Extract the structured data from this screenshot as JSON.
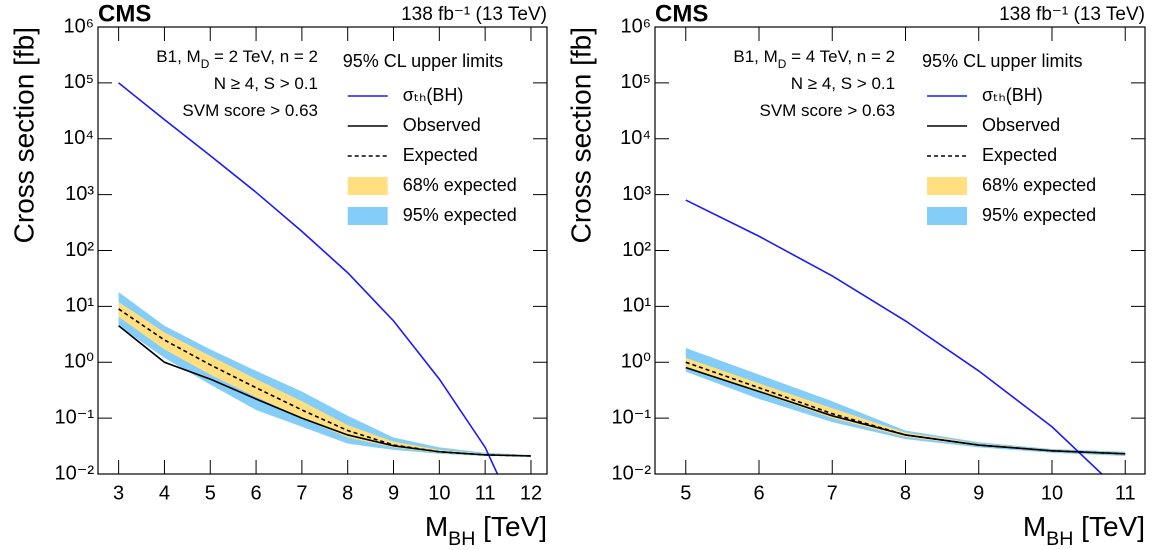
{
  "chart_data": [
    {
      "type": "line",
      "log_y": true,
      "experiment": "CMS",
      "lumi": "138 fb⁻¹ (13 TeV)",
      "y_label": "Cross section [fb]",
      "x_label": [
        {
          "text": "M"
        },
        {
          "text": "BH",
          "shift": "sub"
        },
        {
          "text": " [TeV]"
        }
      ],
      "annotations": [
        [
          {
            "text": "B1, M"
          },
          {
            "text": "D",
            "shift": "sub"
          },
          {
            "text": " = 2 TeV, n = 2"
          }
        ],
        [
          {
            "text": "N ≥ 4, S > 0.1"
          }
        ],
        [
          {
            "text": "SVM score > 0.63"
          }
        ]
      ],
      "legend_title": "95% CL upper limits",
      "xlim": [
        2.55,
        12.35
      ],
      "xticks": [
        3,
        4,
        5,
        6,
        7,
        8,
        9,
        10,
        11,
        12
      ],
      "ylim": [
        0.01,
        1000000
      ],
      "yticks": [
        {
          "value": 0.01,
          "label": "10⁻²"
        },
        {
          "value": 0.1,
          "label": "10⁻¹"
        },
        {
          "value": 1,
          "label": "10⁰"
        },
        {
          "value": 10,
          "label": "10¹"
        },
        {
          "value": 100,
          "label": "10²"
        },
        {
          "value": 1000,
          "label": "10³"
        },
        {
          "value": 10000,
          "label": "10⁴"
        },
        {
          "value": 100000,
          "label": "10⁵"
        },
        {
          "value": 1000000,
          "label": "10⁶"
        }
      ],
      "x": [
        3,
        4,
        5,
        6,
        7,
        8,
        9,
        10,
        11,
        12
      ],
      "series": [
        {
          "name": "σₜₕ(BH)",
          "color": "#1a1aff",
          "values": [
            100000,
            22000,
            5000,
            1100,
            220,
            40,
            5.5,
            0.5,
            0.03,
            0.0005
          ]
        },
        {
          "name": "Observed",
          "color": "#000000",
          "values": [
            4.5,
            1.0,
            0.5,
            0.22,
            0.1,
            0.05,
            0.032,
            0.025,
            0.022,
            0.021
          ]
        },
        {
          "name": "Expected",
          "color": "#000000",
          "dashed": true,
          "values": [
            9,
            2.5,
            0.9,
            0.35,
            0.14,
            0.06,
            0.033,
            0.025,
            0.022,
            0.021
          ]
        }
      ],
      "bands": [
        {
          "name": "68% expected",
          "color": "#ffdf7f",
          "lower": [
            6.5,
            1.7,
            0.6,
            0.24,
            0.1,
            0.045,
            0.03,
            0.024,
            0.022,
            0.021
          ],
          "upper": [
            12,
            3.4,
            1.3,
            0.5,
            0.2,
            0.075,
            0.038,
            0.027,
            0.023,
            0.022
          ]
        },
        {
          "name": "95% expected",
          "color": "#85cdf9",
          "lower": [
            4.5,
            1.2,
            0.4,
            0.14,
            0.07,
            0.035,
            0.027,
            0.023,
            0.021,
            0.021
          ],
          "upper": [
            18,
            4.5,
            1.7,
            0.7,
            0.3,
            0.11,
            0.045,
            0.03,
            0.024,
            0.022
          ]
        }
      ]
    },
    {
      "type": "line",
      "log_y": true,
      "experiment": "CMS",
      "lumi": "138 fb⁻¹ (13 TeV)",
      "y_label": "Cross section [fb]",
      "x_label": [
        {
          "text": "M"
        },
        {
          "text": "BH",
          "shift": "sub"
        },
        {
          "text": " [TeV]"
        }
      ],
      "annotations": [
        [
          {
            "text": "B1, M"
          },
          {
            "text": "D",
            "shift": "sub"
          },
          {
            "text": " = 4 TeV, n = 2"
          }
        ],
        [
          {
            "text": "N ≥ 4, S > 0.1"
          }
        ],
        [
          {
            "text": "SVM score > 0.63"
          }
        ]
      ],
      "legend_title": "95% CL upper limits",
      "xlim": [
        4.58,
        11.27
      ],
      "xticks": [
        5,
        6,
        7,
        8,
        9,
        10,
        11
      ],
      "ylim": [
        0.01,
        1000000
      ],
      "yticks": [
        {
          "value": 0.01,
          "label": "10⁻²"
        },
        {
          "value": 0.1,
          "label": "10⁻¹"
        },
        {
          "value": 1,
          "label": "10⁰"
        },
        {
          "value": 10,
          "label": "10¹"
        },
        {
          "value": 100,
          "label": "10²"
        },
        {
          "value": 1000,
          "label": "10³"
        },
        {
          "value": 10000,
          "label": "10⁴"
        },
        {
          "value": 100000,
          "label": "10⁵"
        },
        {
          "value": 1000000,
          "label": "10⁶"
        }
      ],
      "x": [
        5,
        6,
        7,
        8,
        9,
        10,
        11
      ],
      "series": [
        {
          "name": "σₜₕ(BH)",
          "color": "#1a1aff",
          "values": [
            800,
            180,
            35,
            5.5,
            0.7,
            0.07,
            0.004
          ]
        },
        {
          "name": "Observed",
          "color": "#000000",
          "values": [
            0.8,
            0.3,
            0.11,
            0.05,
            0.033,
            0.026,
            0.023
          ]
        },
        {
          "name": "Expected",
          "color": "#000000",
          "dashed": true,
          "values": [
            1.0,
            0.35,
            0.12,
            0.05,
            0.033,
            0.026,
            0.023
          ]
        }
      ],
      "bands": [
        {
          "name": "68% expected",
          "color": "#ffdf7f",
          "lower": [
            0.85,
            0.29,
            0.1,
            0.046,
            0.032,
            0.025,
            0.022
          ],
          "upper": [
            1.2,
            0.42,
            0.15,
            0.055,
            0.035,
            0.027,
            0.024
          ]
        },
        {
          "name": "95% expected",
          "color": "#85cdf9",
          "lower": [
            0.68,
            0.22,
            0.085,
            0.042,
            0.03,
            0.024,
            0.021
          ],
          "upper": [
            1.8,
            0.6,
            0.2,
            0.06,
            0.037,
            0.028,
            0.025
          ]
        }
      ]
    }
  ]
}
